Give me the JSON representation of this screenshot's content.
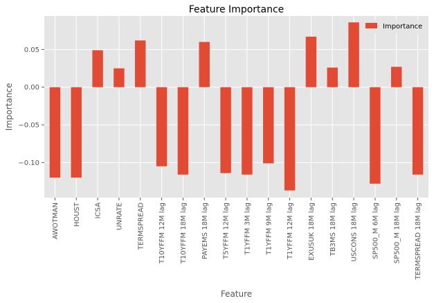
{
  "chart_data": {
    "type": "bar",
    "title": "Feature Importance",
    "xlabel": "Feature",
    "ylabel": "Importance",
    "categories": [
      "AWOTMAN",
      "HOUST",
      "ICSA",
      "UNRATE",
      "TERMSPREAD",
      "T10YFFM 12M lag",
      "T10YFFM 18M lag",
      "PAYEMS 18M lag",
      "T5YFFM 12M lag",
      "T1YFFM 3M lag",
      "T1YFFM 9M lag",
      "T1YFFM 12M lag",
      "EXUSUK 18M lag",
      "TB3MS 18M lag",
      "USCONS 18M lag",
      "SP500_M 6M lag",
      "SP500_M 18M lag",
      "TERMSPREAD 18M lag"
    ],
    "series": [
      {
        "name": "Importance",
        "values": [
          -0.12,
          -0.12,
          0.049,
          0.025,
          0.062,
          -0.105,
          -0.116,
          0.06,
          -0.114,
          -0.116,
          -0.101,
          -0.137,
          0.067,
          0.026,
          0.086,
          -0.128,
          0.027,
          -0.116
        ]
      }
    ],
    "ylim": [
      -0.1465,
      0.0945
    ],
    "yticks": [
      -0.1,
      -0.05,
      0.0,
      0.05
    ],
    "ytick_labels": [
      "−0.10",
      "−0.05",
      "0.00",
      "0.05"
    ],
    "grid": true,
    "legend": "top-right",
    "colors": {
      "bar": "#E24A33",
      "plot_background": "#E5E5E5",
      "grid": "#FFFFFF"
    }
  }
}
